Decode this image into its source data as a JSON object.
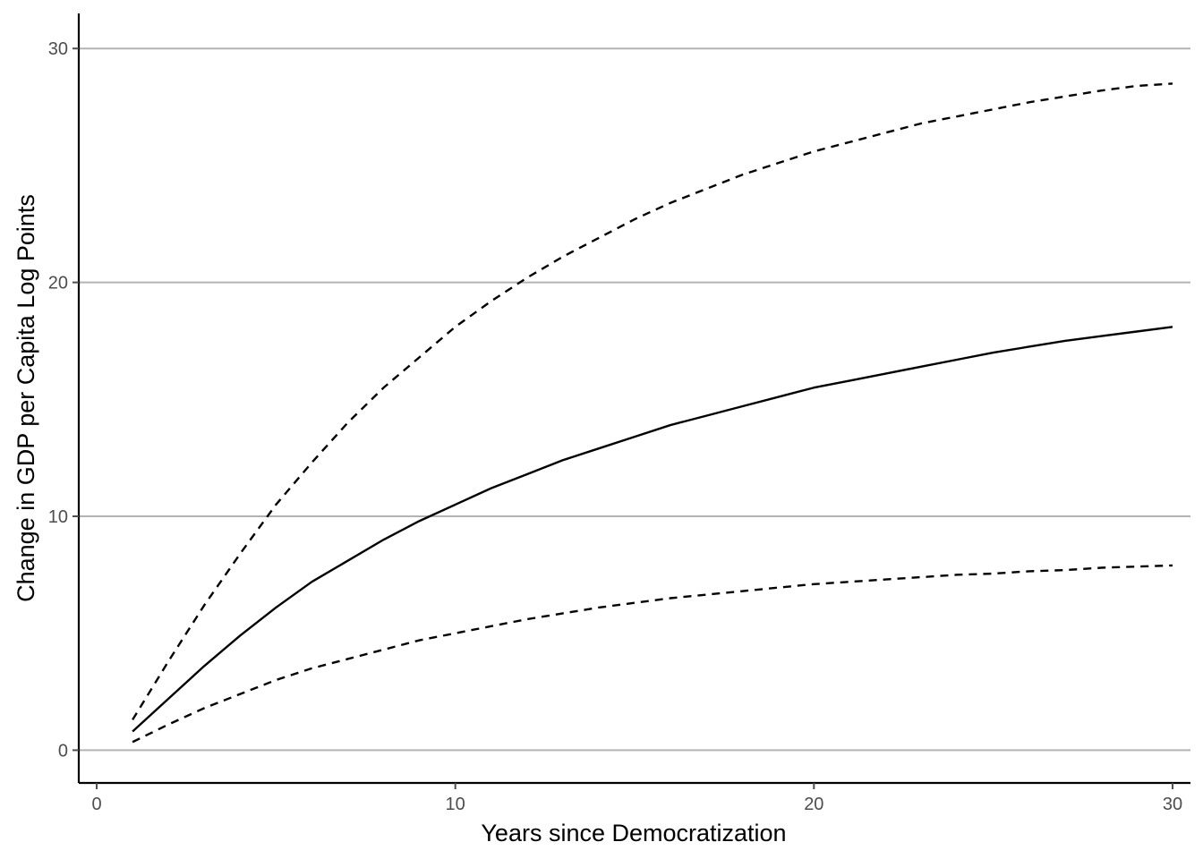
{
  "chart_data": {
    "type": "line",
    "title": "",
    "xlabel": "Years since Democratization",
    "ylabel": "Change in GDP per Capita Log Points",
    "xlim": [
      -0.5,
      30.5
    ],
    "ylim": [
      -1.4,
      31.5
    ],
    "x_ticks": [
      0,
      10,
      20,
      30
    ],
    "y_ticks": [
      0,
      10,
      20,
      30
    ],
    "grid": "horizontal major",
    "legend": "none",
    "x": [
      1,
      2,
      3,
      4,
      5,
      6,
      7,
      8,
      9,
      10,
      11,
      12,
      13,
      14,
      15,
      16,
      17,
      18,
      19,
      20,
      21,
      22,
      23,
      24,
      25,
      26,
      27,
      28,
      29,
      30
    ],
    "series": [
      {
        "style": "solid",
        "color": "#000000",
        "values": [
          0.8,
          2.2,
          3.6,
          4.9,
          6.1,
          7.2,
          8.1,
          9.0,
          9.8,
          10.5,
          11.2,
          11.8,
          12.4,
          12.9,
          13.4,
          13.9,
          14.3,
          14.7,
          15.1,
          15.5,
          15.8,
          16.1,
          16.4,
          16.7,
          17.0,
          17.25,
          17.5,
          17.7,
          17.9,
          18.1
        ]
      },
      {
        "style": "dashed",
        "color": "#000000",
        "values": [
          1.3,
          3.8,
          6.2,
          8.4,
          10.5,
          12.3,
          14.0,
          15.5,
          16.8,
          18.1,
          19.2,
          20.2,
          21.1,
          21.9,
          22.7,
          23.4,
          24.0,
          24.6,
          25.1,
          25.6,
          26.0,
          26.4,
          26.8,
          27.1,
          27.4,
          27.7,
          27.95,
          28.2,
          28.4,
          28.5
        ]
      },
      {
        "style": "dashed",
        "color": "#000000",
        "values": [
          0.35,
          1.1,
          1.8,
          2.4,
          3.0,
          3.5,
          3.9,
          4.3,
          4.7,
          5.0,
          5.3,
          5.6,
          5.85,
          6.1,
          6.3,
          6.5,
          6.65,
          6.8,
          6.95,
          7.1,
          7.2,
          7.3,
          7.4,
          7.5,
          7.55,
          7.65,
          7.7,
          7.8,
          7.85,
          7.9
        ]
      }
    ]
  },
  "colors": {
    "gridline": "#b3b3b3",
    "axis": "#000000",
    "tick_text": "#4d4d4d",
    "background": "#ffffff"
  }
}
